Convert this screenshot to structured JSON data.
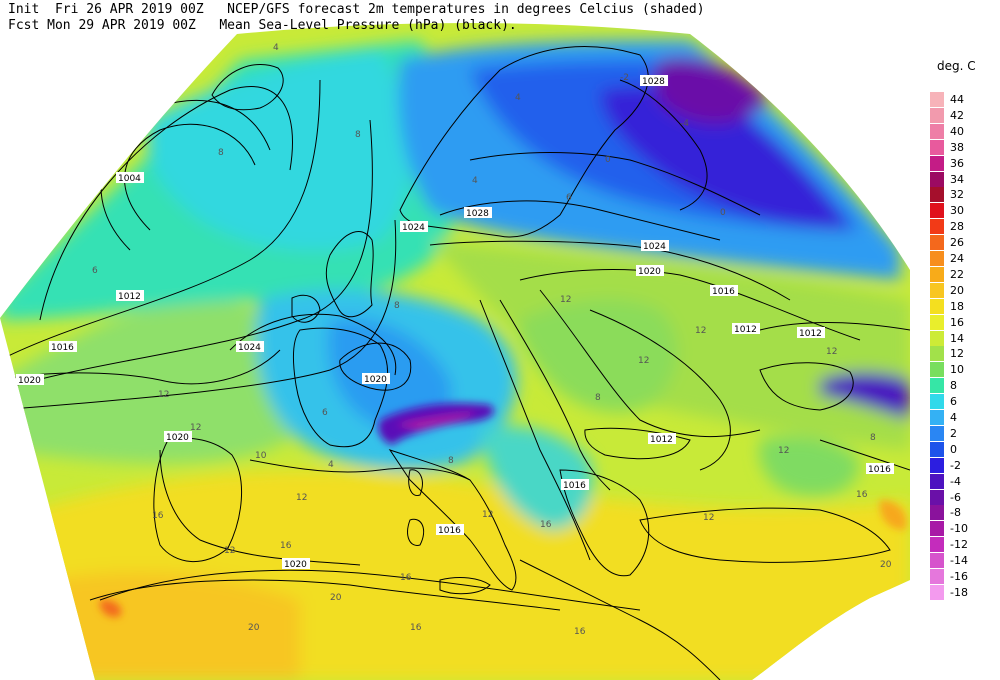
{
  "header": {
    "line1": "Init  Fri 26 APR 2019 00Z   NCEP/GFS forecast 2m temperatures in degrees Celcius (shaded)",
    "line2": "Fcst Mon 29 APR 2019 00Z   Mean Sea-Level Pressure (hPa) (black)."
  },
  "legend": {
    "unit": "deg. C",
    "entries": [
      {
        "label": "44",
        "color": "#f7b3b9"
      },
      {
        "label": "42",
        "color": "#f29aad"
      },
      {
        "label": "40",
        "color": "#ee7ea6"
      },
      {
        "label": "38",
        "color": "#e85a9d"
      },
      {
        "label": "36",
        "color": "#c41c86"
      },
      {
        "label": "34",
        "color": "#9c0a62"
      },
      {
        "label": "32",
        "color": "#a50f2c"
      },
      {
        "label": "30",
        "color": "#e0111c"
      },
      {
        "label": "28",
        "color": "#f23a17"
      },
      {
        "label": "26",
        "color": "#f4681c"
      },
      {
        "label": "24",
        "color": "#f78e1d"
      },
      {
        "label": "22",
        "color": "#f8ab19"
      },
      {
        "label": "20",
        "color": "#f8c621"
      },
      {
        "label": "18",
        "color": "#f4df1f"
      },
      {
        "label": "16",
        "color": "#e9ee2c"
      },
      {
        "label": "14",
        "color": "#cdeb37"
      },
      {
        "label": "12",
        "color": "#a2e14a"
      },
      {
        "label": "10",
        "color": "#78de5e"
      },
      {
        "label": "8",
        "color": "#36e6a6"
      },
      {
        "label": "6",
        "color": "#31d9ea"
      },
      {
        "label": "4",
        "color": "#34b1f4"
      },
      {
        "label": "2",
        "color": "#2a86f3"
      },
      {
        "label": "0",
        "color": "#1d53ea"
      },
      {
        "label": "-2",
        "color": "#2c1ee0"
      },
      {
        "label": "-4",
        "color": "#4d12c0"
      },
      {
        "label": "-6",
        "color": "#6a10a8"
      },
      {
        "label": "-8",
        "color": "#8a129c"
      },
      {
        "label": "-10",
        "color": "#a819a6"
      },
      {
        "label": "-12",
        "color": "#c42cbc"
      },
      {
        "label": "-14",
        "color": "#d654cc"
      },
      {
        "label": "-16",
        "color": "#e577dc"
      },
      {
        "label": "-18",
        "color": "#f39aee"
      }
    ]
  },
  "isobars": {
    "labels": [
      "1004",
      "1012",
      "1016",
      "1020",
      "1024",
      "1028",
      "1024",
      "1020",
      "1016",
      "1012",
      "1012",
      "1024",
      "1020",
      "1012",
      "1016",
      "1016",
      "1020",
      "1016",
      "1020",
      "1028"
    ]
  },
  "temps": {
    "labels": [
      "4",
      "8",
      "8",
      "6",
      "12",
      "12",
      "10",
      "12",
      "4",
      "8",
      "16",
      "16",
      "16",
      "12",
      "20",
      "20",
      "16",
      "12",
      "16",
      "8",
      "6",
      "4",
      "12",
      "12",
      "8",
      "4",
      "0",
      "-4",
      "0",
      "6",
      "12",
      "12",
      "12",
      "8",
      "12",
      "16",
      "20",
      "16",
      "-2"
    ]
  }
}
